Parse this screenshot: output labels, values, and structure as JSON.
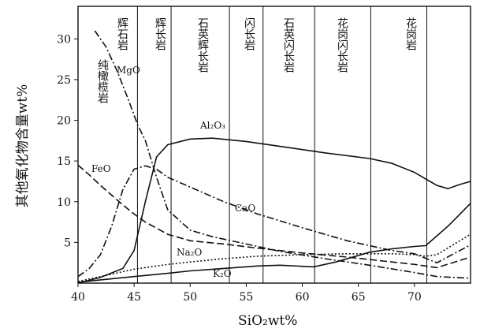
{
  "chart_data": {
    "type": "line",
    "xlabel": "SiO₂wt%",
    "ylabel": "其他氧化物含量wt%",
    "xlim": [
      40,
      75
    ],
    "ylim": [
      0,
      34
    ],
    "xticks": [
      40,
      45,
      50,
      55,
      60,
      65,
      70
    ],
    "yticks": [
      5,
      10,
      15,
      20,
      25,
      30
    ],
    "rock_zones": [
      {
        "name": "纯橄榄岩",
        "x_start": 40,
        "x_end": 45.3
      },
      {
        "name": "辉石岩",
        "x_start": 40,
        "x_end": 45.3
      },
      {
        "name": "辉长岩",
        "x_start": 45.3,
        "x_end": 48.3
      },
      {
        "name": "石英辉长岩",
        "x_start": 48.3,
        "x_end": 53.5
      },
      {
        "name": "闪长岩",
        "x_start": 53.5,
        "x_end": 56.5
      },
      {
        "name": "石英闪长岩",
        "x_start": 56.5,
        "x_end": 61.1
      },
      {
        "name": "花岗闪长岩",
        "x_start": 61.1,
        "x_end": 66.1
      },
      {
        "name": "花岗岩",
        "x_start": 66.1,
        "x_end": 71.1
      }
    ],
    "zone_dividers": [
      45.3,
      48.3,
      53.5,
      56.5,
      61.1,
      66.1,
      71.1
    ],
    "series": [
      {
        "name": "Al₂O₃",
        "style": "solid",
        "x": [
          40,
          42,
          44,
          45,
          46,
          47,
          48,
          50,
          52,
          55,
          58,
          62,
          66,
          68,
          70,
          71,
          72,
          73,
          74,
          75
        ],
        "y": [
          0,
          0.7,
          1.8,
          4,
          10,
          15.5,
          17,
          17.7,
          17.8,
          17.4,
          16.8,
          16,
          15.3,
          14.7,
          13.6,
          12.8,
          12,
          11.6,
          12.1,
          12.5
        ]
      },
      {
        "name": "MgO",
        "style": "dashdot",
        "x": [
          41.5,
          42.5,
          43.5,
          44.5,
          45.3,
          46,
          47,
          48,
          50,
          52,
          55,
          58,
          62,
          66,
          70,
          72,
          75
        ],
        "y": [
          31,
          29,
          26,
          22.5,
          19.5,
          17.5,
          13,
          9,
          6.5,
          5.7,
          4.8,
          3.9,
          3,
          2.2,
          1.3,
          0.8,
          0.6
        ]
      },
      {
        "name": "CaO",
        "style": "dashdot",
        "x": [
          40,
          41,
          42,
          43,
          44,
          45,
          46,
          47,
          48,
          50,
          53,
          56,
          60,
          64,
          68,
          70,
          72,
          75
        ],
        "y": [
          0.8,
          1.8,
          3.5,
          7,
          11.5,
          14,
          14.4,
          14,
          13,
          11.8,
          10,
          8.5,
          6.8,
          5.2,
          4,
          3.6,
          2.5,
          4.7
        ]
      },
      {
        "name": "FeO",
        "style": "dashed",
        "x": [
          40,
          41,
          42,
          43,
          44,
          45,
          46,
          48,
          50,
          53,
          56,
          60,
          64,
          68,
          70,
          72,
          75
        ],
        "y": [
          14.5,
          13.3,
          12,
          10.8,
          9.6,
          8.5,
          7.5,
          6,
          5.2,
          4.8,
          4.3,
          3.7,
          3.2,
          2.6,
          2.3,
          1.9,
          3.2
        ]
      },
      {
        "name": "Na₂O",
        "style": "dotted",
        "x": [
          40,
          42,
          45,
          48,
          50,
          53,
          56,
          60,
          64,
          68,
          70,
          71,
          72,
          75
        ],
        "y": [
          0.2,
          0.8,
          1.7,
          2.3,
          2.6,
          3,
          3.3,
          3.5,
          3.6,
          3.6,
          3.5,
          3.3,
          3.5,
          6
        ]
      },
      {
        "name": "K₂O",
        "style": "solid",
        "x": [
          40,
          42,
          45,
          48,
          50,
          53,
          56,
          58,
          61,
          63,
          66,
          68,
          70,
          71,
          72,
          73,
          74,
          75
        ],
        "y": [
          0.1,
          0.4,
          0.8,
          1.2,
          1.5,
          1.8,
          2.1,
          2.2,
          2,
          2.6,
          3.8,
          4.2,
          4.5,
          4.6,
          5.8,
          7,
          8.4,
          9.8
        ]
      }
    ]
  }
}
